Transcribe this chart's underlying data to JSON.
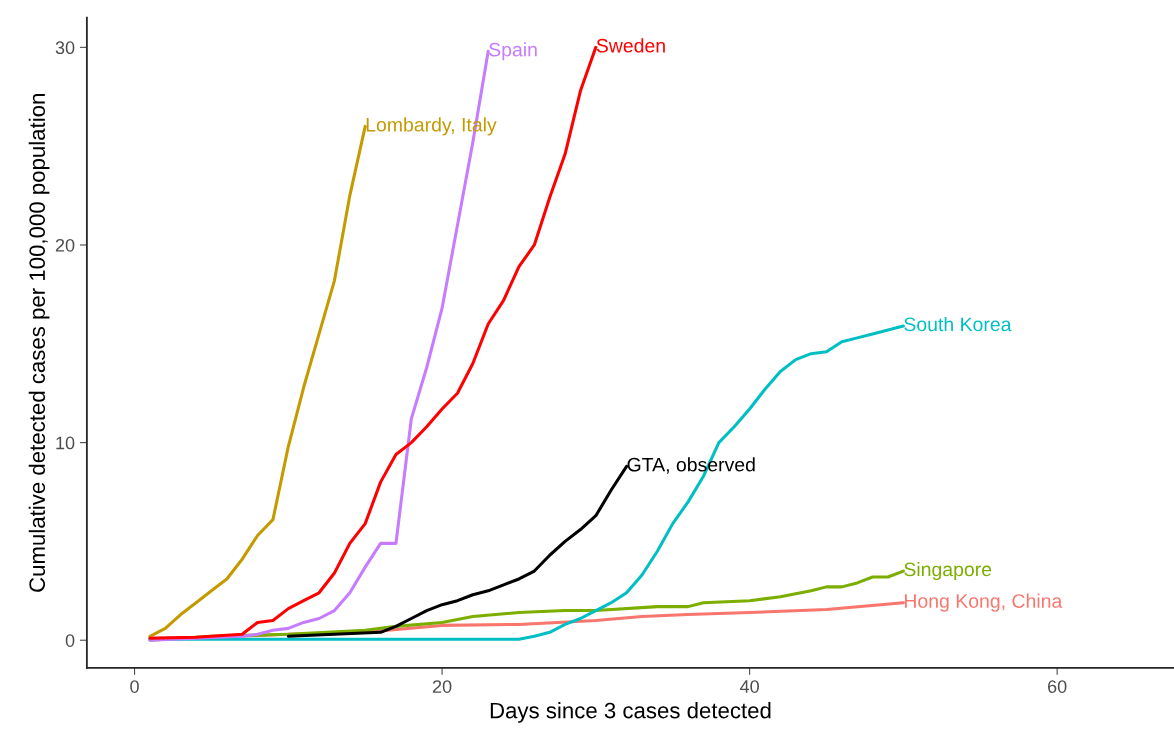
{
  "chart_data": {
    "type": "line",
    "xlabel": "Days since 3 cases detected",
    "ylabel": "Cumulative detected cases per 100,000 population",
    "xlim": [
      -3.1,
      67.6
    ],
    "ylim": [
      -1.4,
      31.5
    ],
    "xticks": [
      0,
      20,
      40,
      60
    ],
    "yticks": [
      0,
      10,
      20,
      30
    ],
    "grid": false,
    "legend": false,
    "marker": "none",
    "line_style": "solid",
    "series": [
      {
        "name": "Hong Kong, China",
        "color": "#f8766d",
        "x": [
          1,
          5,
          10,
          15,
          20,
          25,
          30,
          33,
          36,
          40,
          45,
          50
        ],
        "values": [
          0.1,
          0.15,
          0.3,
          0.4,
          0.75,
          0.8,
          1.0,
          1.2,
          1.3,
          1.4,
          1.55,
          1.9
        ]
      },
      {
        "name": "Singapore",
        "color": "#7cae00",
        "x": [
          1,
          5,
          10,
          15,
          17,
          20,
          22,
          25,
          28,
          30,
          34,
          36,
          37,
          40,
          42,
          44,
          45,
          46,
          47,
          48,
          49,
          50
        ],
        "values": [
          0.0,
          0.2,
          0.3,
          0.5,
          0.7,
          0.9,
          1.2,
          1.4,
          1.5,
          1.5,
          1.7,
          1.7,
          1.9,
          2.0,
          2.2,
          2.5,
          2.7,
          2.7,
          2.9,
          3.2,
          3.2,
          3.5
        ]
      },
      {
        "name": "South Korea",
        "color": "#00bfc4",
        "x": [
          1,
          25,
          26,
          27,
          28,
          29,
          30,
          31,
          32,
          33,
          34,
          35,
          36,
          37,
          38,
          39,
          40,
          41,
          42,
          43,
          44,
          45,
          46,
          47,
          48,
          49,
          50
        ],
        "values": [
          0.05,
          0.05,
          0.2,
          0.4,
          0.8,
          1.1,
          1.5,
          1.9,
          2.4,
          3.3,
          4.5,
          5.9,
          7.0,
          8.3,
          10.0,
          10.8,
          11.7,
          12.7,
          13.6,
          14.2,
          14.5,
          14.6,
          15.1,
          15.3,
          15.5,
          15.7,
          15.9
        ]
      },
      {
        "name": "GTA, observed",
        "color": "#000000",
        "x": [
          10,
          16,
          17,
          18,
          19,
          20,
          21,
          22,
          23,
          24,
          25,
          26,
          27,
          28,
          29,
          30,
          31,
          32
        ],
        "values": [
          0.2,
          0.4,
          0.7,
          1.1,
          1.5,
          1.8,
          2.0,
          2.3,
          2.5,
          2.8,
          3.1,
          3.5,
          4.3,
          5.0,
          5.6,
          6.3,
          7.6,
          8.8
        ]
      },
      {
        "name": "Lombardy, Italy",
        "color": "#c49a00",
        "x": [
          1,
          2,
          3,
          4,
          5,
          6,
          7,
          8,
          9,
          10,
          11,
          12,
          13,
          14,
          15
        ],
        "values": [
          0.2,
          0.6,
          1.3,
          1.9,
          2.5,
          3.1,
          4.1,
          5.3,
          6.1,
          9.8,
          12.8,
          15.5,
          18.2,
          22.5,
          26.0
        ]
      },
      {
        "name": "Spain",
        "color": "#c77cff",
        "x": [
          1,
          7,
          8,
          9,
          10,
          11,
          12,
          13,
          14,
          15,
          16,
          17,
          18,
          19,
          20,
          21,
          22,
          23
        ],
        "values": [
          0.0,
          0.2,
          0.3,
          0.5,
          0.6,
          0.9,
          1.1,
          1.5,
          2.4,
          3.7,
          4.9,
          4.9,
          11.2,
          13.8,
          16.8,
          21.0,
          25.2,
          29.8
        ]
      },
      {
        "name": "Sweden",
        "color": "#ff0000",
        "x": [
          1,
          4,
          7,
          8,
          9,
          10,
          11,
          12,
          13,
          14,
          15,
          16,
          17,
          18,
          19,
          20,
          21,
          22,
          23,
          24,
          25,
          26,
          27,
          28,
          29,
          30
        ],
        "values": [
          0.1,
          0.15,
          0.3,
          0.9,
          1.0,
          1.6,
          2.0,
          2.4,
          3.4,
          4.9,
          5.9,
          8.0,
          9.4,
          10.0,
          10.8,
          11.7,
          12.5,
          14.0,
          16.0,
          17.2,
          18.9,
          20.0,
          22.4,
          24.6,
          27.8,
          30.0
        ]
      }
    ]
  }
}
